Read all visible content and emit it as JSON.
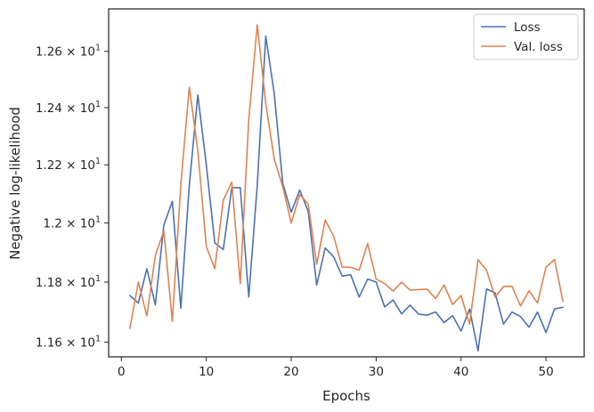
{
  "chart_data": {
    "type": "line",
    "xlabel": "Epochs",
    "ylabel": "Negative log-likelihood",
    "xlim": [
      -1.5,
      54.5
    ],
    "ylim": [
      11.552,
      12.753
    ],
    "y_scale": "log",
    "grid": false,
    "legend_position": "top-right",
    "x_ticks": [
      {
        "value": 0,
        "label": "0"
      },
      {
        "value": 10,
        "label": "10"
      },
      {
        "value": 20,
        "label": "20"
      },
      {
        "value": 30,
        "label": "30"
      },
      {
        "value": 40,
        "label": "40"
      },
      {
        "value": 50,
        "label": "50"
      }
    ],
    "y_ticks": [
      {
        "value": 11.6,
        "mantissa": "1.16",
        "base": "10",
        "exp": "1"
      },
      {
        "value": 11.8,
        "mantissa": "1.18",
        "base": "10",
        "exp": "1"
      },
      {
        "value": 12.0,
        "mantissa": "1.2",
        "base": "10",
        "exp": "1"
      },
      {
        "value": 12.2,
        "mantissa": "1.22",
        "base": "10",
        "exp": "1"
      },
      {
        "value": 12.4,
        "mantissa": "1.24",
        "base": "10",
        "exp": "1"
      },
      {
        "value": 12.6,
        "mantissa": "1.26",
        "base": "10",
        "exp": "1"
      }
    ],
    "x": [
      1,
      2,
      3,
      4,
      5,
      6,
      7,
      8,
      9,
      10,
      11,
      12,
      13,
      14,
      15,
      16,
      17,
      18,
      19,
      20,
      21,
      22,
      23,
      24,
      25,
      26,
      27,
      28,
      29,
      30,
      31,
      32,
      33,
      34,
      35,
      36,
      37,
      38,
      39,
      40,
      41,
      42,
      43,
      44,
      45,
      46,
      47,
      48,
      49,
      50,
      51,
      52
    ],
    "series": [
      {
        "name": "Loss",
        "color": "#4c72b0",
        "values": [
          11.755,
          11.73,
          11.845,
          11.724,
          11.993,
          12.074,
          11.713,
          12.13,
          12.445,
          12.2,
          11.932,
          11.91,
          12.121,
          12.121,
          11.75,
          12.13,
          12.655,
          12.45,
          12.137,
          12.037,
          12.113,
          12.04,
          11.79,
          11.915,
          11.885,
          11.82,
          11.825,
          11.75,
          11.81,
          11.8,
          11.717,
          11.74,
          11.694,
          11.723,
          11.693,
          11.69,
          11.7,
          11.665,
          11.688,
          11.637,
          11.71,
          11.572,
          11.777,
          11.764,
          11.66,
          11.7,
          11.685,
          11.65,
          11.7,
          11.632,
          11.71,
          11.716
        ]
      },
      {
        "name": "Val. loss",
        "color": "#dd8452",
        "values": [
          11.646,
          11.8,
          11.687,
          11.89,
          11.973,
          11.669,
          12.133,
          12.472,
          12.25,
          11.92,
          11.845,
          12.078,
          12.14,
          11.795,
          12.358,
          12.695,
          12.415,
          12.22,
          12.125,
          12.0,
          12.097,
          12.065,
          11.86,
          12.01,
          11.955,
          11.85,
          11.85,
          11.84,
          11.93,
          11.81,
          11.795,
          11.77,
          11.8,
          11.773,
          11.775,
          11.776,
          11.745,
          11.79,
          11.725,
          11.755,
          11.66,
          11.875,
          11.84,
          11.75,
          11.785,
          11.786,
          11.72,
          11.771,
          11.73,
          11.85,
          11.876,
          11.736
        ]
      }
    ]
  }
}
